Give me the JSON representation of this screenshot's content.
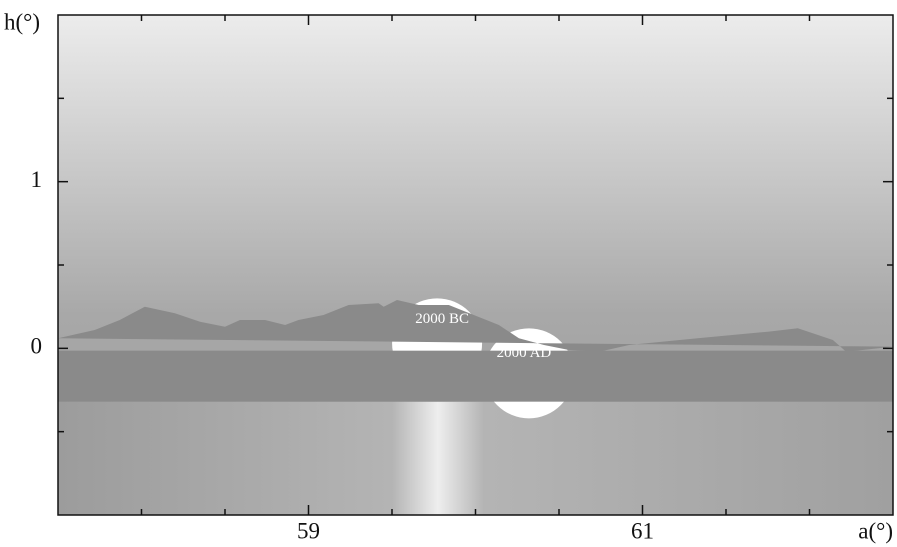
{
  "chart_data": {
    "type": "area",
    "x_label": "a(°)",
    "y_label": "h(°)",
    "xlim": [
      57.5,
      62.5
    ],
    "ylim": [
      -1,
      2
    ],
    "xticks": [
      59,
      61
    ],
    "yticks": [
      0,
      1
    ],
    "xminorticks": [
      58,
      58.5,
      59.5,
      60,
      60.5,
      61.5,
      62
    ],
    "yminorticks": [
      -0.5,
      0.5,
      1.5
    ],
    "ground_level": -0.32,
    "color": "#8a8a8a",
    "x": [
      57.5,
      57.72,
      57.87,
      58.02,
      58.2,
      58.35,
      58.5,
      58.59,
      58.74,
      58.86,
      58.94,
      59.09,
      59.24,
      59.42,
      59.45,
      59.53,
      59.66,
      59.84,
      59.99,
      60.14,
      60.26,
      60.41,
      60.56,
      60.74,
      60.92,
      61.33,
      61.75,
      61.93,
      62.14,
      62.22,
      62.5
    ],
    "values": [
      0.06,
      0.11,
      0.17,
      0.25,
      0.21,
      0.16,
      0.13,
      0.17,
      0.17,
      0.14,
      0.17,
      0.2,
      0.26,
      0.27,
      0.25,
      0.29,
      0.26,
      0.26,
      0.2,
      0.14,
      0.06,
      0.02,
      -0.01,
      -0.02,
      0.02,
      0.06,
      0.1,
      0.12,
      0.05,
      -0.02,
      0.01
    ],
    "suns": [
      {
        "label": "2000 BC",
        "x": 59.77,
        "y": 0.3
      },
      {
        "label": "2000 AD",
        "x": 60.32,
        "y": 0.12
      }
    ]
  }
}
